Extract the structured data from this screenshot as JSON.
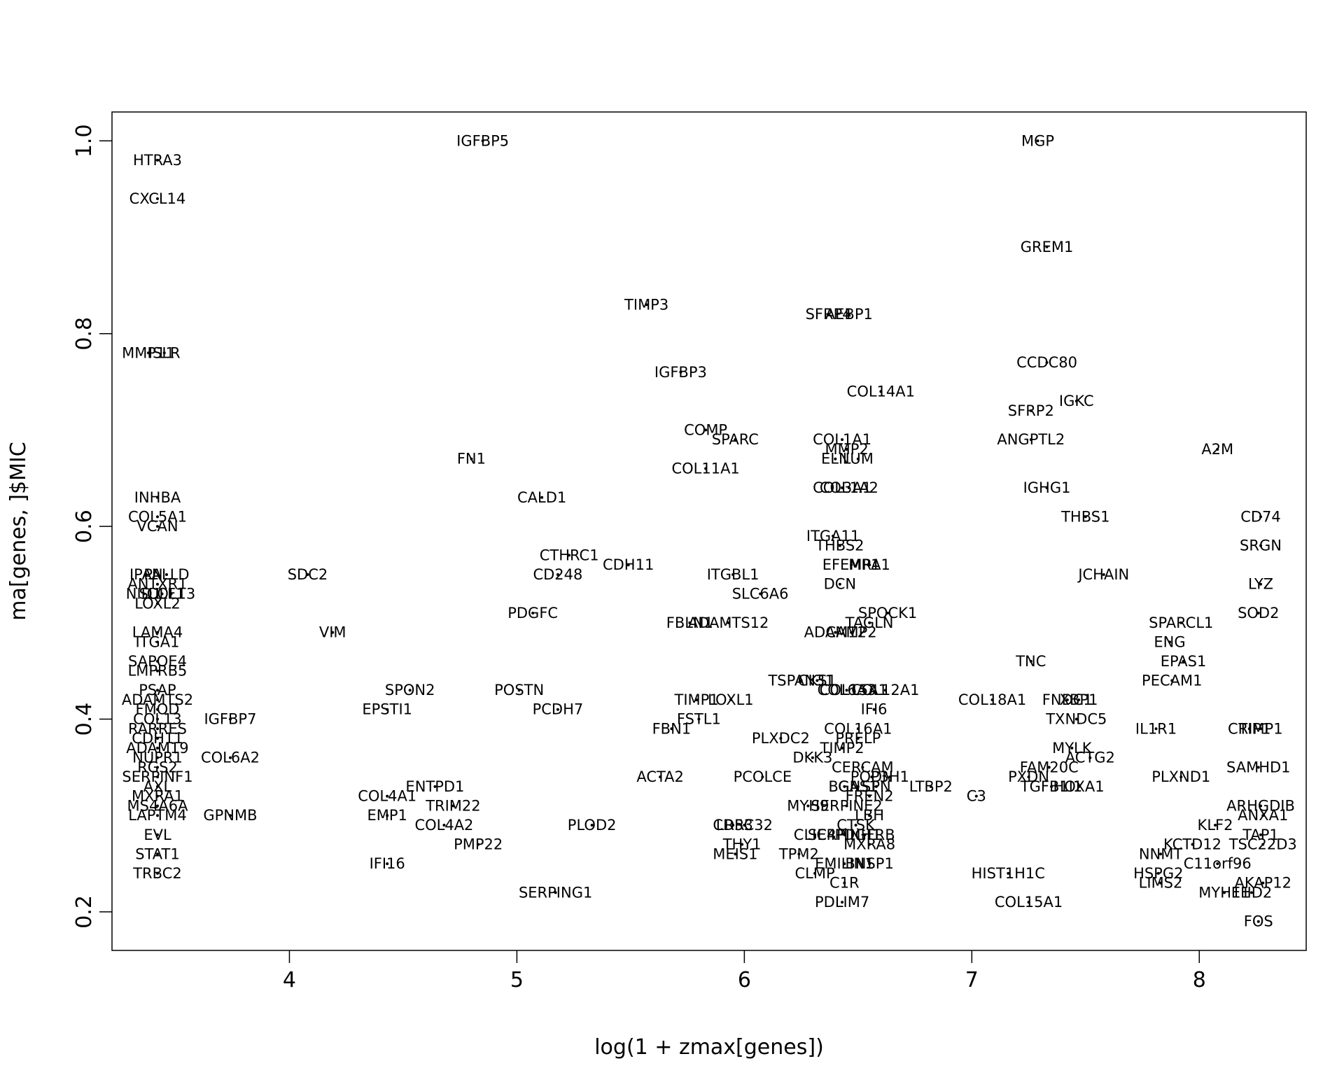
{
  "chart_data": {
    "type": "scatter",
    "xlabel": "log(1 + zmax[genes])",
    "ylabel": "ma[genes, ]$MIC",
    "xlim": [
      3.22,
      8.47
    ],
    "ylim": [
      0.16,
      1.03
    ],
    "xticks": [
      "4",
      "5",
      "6",
      "7",
      "8"
    ],
    "yticks": [
      "0.2",
      "0.4",
      "0.6",
      "0.8",
      "1.0"
    ],
    "grid": false,
    "legend": "none",
    "points": [
      {
        "label": "IGFBP5",
        "x": 4.85,
        "y": 1.0
      },
      {
        "label": "MGP",
        "x": 7.29,
        "y": 1.0
      },
      {
        "label": "HTRA3",
        "x": 3.42,
        "y": 0.98
      },
      {
        "label": "CXCL14",
        "x": 3.42,
        "y": 0.94
      },
      {
        "label": "GREM1",
        "x": 7.33,
        "y": 0.89
      },
      {
        "label": "TIMP3",
        "x": 5.57,
        "y": 0.83
      },
      {
        "label": "SFRP4",
        "x": 6.37,
        "y": 0.82
      },
      {
        "label": "AEBP1",
        "x": 6.46,
        "y": 0.82
      },
      {
        "label": "MMP11",
        "x": 3.38,
        "y": 0.78
      },
      {
        "label": "ISLR",
        "x": 3.45,
        "y": 0.78
      },
      {
        "label": "CCDC80",
        "x": 7.33,
        "y": 0.77
      },
      {
        "label": "IGFBP3",
        "x": 5.72,
        "y": 0.76
      },
      {
        "label": "COL14A1",
        "x": 6.6,
        "y": 0.74
      },
      {
        "label": "IGKC",
        "x": 7.46,
        "y": 0.73
      },
      {
        "label": "SFRP2",
        "x": 7.26,
        "y": 0.72
      },
      {
        "label": "COMP",
        "x": 5.83,
        "y": 0.7
      },
      {
        "label": "SPARC",
        "x": 5.96,
        "y": 0.69
      },
      {
        "label": "COL1A1",
        "x": 6.43,
        "y": 0.69
      },
      {
        "label": "ANGPTL2",
        "x": 7.26,
        "y": 0.69
      },
      {
        "label": "MMP2",
        "x": 6.45,
        "y": 0.68
      },
      {
        "label": "A2M",
        "x": 8.08,
        "y": 0.68
      },
      {
        "label": "FN1",
        "x": 4.8,
        "y": 0.67
      },
      {
        "label": "ELN",
        "x": 6.4,
        "y": 0.67
      },
      {
        "label": "LUM",
        "x": 6.5,
        "y": 0.67
      },
      {
        "label": "COL11A1",
        "x": 5.83,
        "y": 0.66
      },
      {
        "label": "COL3A1",
        "x": 6.43,
        "y": 0.64
      },
      {
        "label": "COL1A2",
        "x": 6.46,
        "y": 0.64
      },
      {
        "label": "IGHG1",
        "x": 7.33,
        "y": 0.64
      },
      {
        "label": "INHBA",
        "x": 3.42,
        "y": 0.63
      },
      {
        "label": "CALD1",
        "x": 5.11,
        "y": 0.63
      },
      {
        "label": "COL5A1",
        "x": 3.42,
        "y": 0.61
      },
      {
        "label": "THBS1",
        "x": 7.5,
        "y": 0.61
      },
      {
        "label": "CD74",
        "x": 8.27,
        "y": 0.61
      },
      {
        "label": "VCAN",
        "x": 3.42,
        "y": 0.6
      },
      {
        "label": "ITGA11",
        "x": 6.39,
        "y": 0.59
      },
      {
        "label": "THBS2",
        "x": 6.42,
        "y": 0.58
      },
      {
        "label": "SRGN",
        "x": 8.27,
        "y": 0.58
      },
      {
        "label": "CTHRC1",
        "x": 5.23,
        "y": 0.57
      },
      {
        "label": "CDH11",
        "x": 5.49,
        "y": 0.56
      },
      {
        "label": "EFEMP1",
        "x": 6.47,
        "y": 0.56
      },
      {
        "label": "MRA1",
        "x": 6.55,
        "y": 0.56
      },
      {
        "label": "JCHAIN",
        "x": 7.58,
        "y": 0.55
      },
      {
        "label": "SDC2",
        "x": 4.08,
        "y": 0.55
      },
      {
        "label": "CD248",
        "x": 5.18,
        "y": 0.55
      },
      {
        "label": "ITGBL1",
        "x": 5.95,
        "y": 0.55
      },
      {
        "label": "IPAN",
        "x": 3.37,
        "y": 0.55
      },
      {
        "label": "PALLD",
        "x": 3.46,
        "y": 0.55
      },
      {
        "label": "ANTXR1",
        "x": 3.42,
        "y": 0.54
      },
      {
        "label": "DCN",
        "x": 6.42,
        "y": 0.54
      },
      {
        "label": "LYZ",
        "x": 8.27,
        "y": 0.54
      },
      {
        "label": "NID1",
        "x": 3.36,
        "y": 0.53
      },
      {
        "label": "SULF1",
        "x": 3.44,
        "y": 0.53
      },
      {
        "label": "COL13",
        "x": 3.48,
        "y": 0.53
      },
      {
        "label": "SLC6A6",
        "x": 6.07,
        "y": 0.53
      },
      {
        "label": "LOXL2",
        "x": 3.42,
        "y": 0.52
      },
      {
        "label": "PDGFC",
        "x": 5.07,
        "y": 0.51
      },
      {
        "label": "SPOCK1",
        "x": 6.63,
        "y": 0.51
      },
      {
        "label": "SOD2",
        "x": 8.26,
        "y": 0.51
      },
      {
        "label": "FBLN1",
        "x": 5.76,
        "y": 0.5
      },
      {
        "label": "ADAMTS12",
        "x": 5.93,
        "y": 0.5
      },
      {
        "label": "TAGLN",
        "x": 6.55,
        "y": 0.5
      },
      {
        "label": "SPARCL1",
        "x": 7.92,
        "y": 0.5
      },
      {
        "label": "VIM",
        "x": 4.19,
        "y": 0.49
      },
      {
        "label": "LAMA4",
        "x": 3.42,
        "y": 0.49
      },
      {
        "label": "ADAM12",
        "x": 6.4,
        "y": 0.49
      },
      {
        "label": "CAMP2",
        "x": 6.47,
        "y": 0.49
      },
      {
        "label": "ITGA1",
        "x": 3.42,
        "y": 0.48
      },
      {
        "label": "ENG",
        "x": 7.87,
        "y": 0.48
      },
      {
        "label": "TNC",
        "x": 7.26,
        "y": 0.46
      },
      {
        "label": "EPAS1",
        "x": 7.93,
        "y": 0.46
      },
      {
        "label": "SAPOE4",
        "x": 3.42,
        "y": 0.46
      },
      {
        "label": "LMPRB5",
        "x": 3.42,
        "y": 0.45
      },
      {
        "label": "TSPAN31",
        "x": 6.25,
        "y": 0.44
      },
      {
        "label": "CKS1",
        "x": 6.32,
        "y": 0.44
      },
      {
        "label": "PECAM1",
        "x": 7.88,
        "y": 0.44
      },
      {
        "label": "SPON2",
        "x": 4.53,
        "y": 0.43
      },
      {
        "label": "POSTN",
        "x": 5.01,
        "y": 0.43
      },
      {
        "label": "COL6A3",
        "x": 6.45,
        "y": 0.43
      },
      {
        "label": "COL15A1",
        "x": 6.48,
        "y": 0.43
      },
      {
        "label": "COL12A1",
        "x": 6.62,
        "y": 0.43
      },
      {
        "label": "PSAP",
        "x": 3.42,
        "y": 0.43
      },
      {
        "label": "ADAMTS2",
        "x": 3.42,
        "y": 0.42
      },
      {
        "label": "TIMP1",
        "x": 5.79,
        "y": 0.42
      },
      {
        "label": "LOXL1",
        "x": 5.94,
        "y": 0.42
      },
      {
        "label": "COL18A1",
        "x": 7.09,
        "y": 0.42
      },
      {
        "label": "FNDC1",
        "x": 7.42,
        "y": 0.42
      },
      {
        "label": "XBP1",
        "x": 7.47,
        "y": 0.42
      },
      {
        "label": "EPSTI1",
        "x": 4.43,
        "y": 0.41
      },
      {
        "label": "PCDH7",
        "x": 5.18,
        "y": 0.41
      },
      {
        "label": "IFI6",
        "x": 6.57,
        "y": 0.41
      },
      {
        "label": "FMOD",
        "x": 3.42,
        "y": 0.41
      },
      {
        "label": "IGFBP7",
        "x": 3.74,
        "y": 0.4
      },
      {
        "label": "COL13",
        "x": 3.42,
        "y": 0.4
      },
      {
        "label": "FSTL1",
        "x": 5.8,
        "y": 0.4
      },
      {
        "label": "TXNDC5",
        "x": 7.46,
        "y": 0.4
      },
      {
        "label": "FBN1",
        "x": 5.68,
        "y": 0.39
      },
      {
        "label": "COL16A1",
        "x": 6.5,
        "y": 0.39
      },
      {
        "label": "IL1R1",
        "x": 7.81,
        "y": 0.39
      },
      {
        "label": "CRIP1",
        "x": 8.22,
        "y": 0.39
      },
      {
        "label": "TIMP1",
        "x": 8.27,
        "y": 0.39
      },
      {
        "label": "RARRES",
        "x": 3.42,
        "y": 0.39
      },
      {
        "label": "CDH11",
        "x": 3.42,
        "y": 0.38
      },
      {
        "label": "PLXDC2",
        "x": 6.16,
        "y": 0.38
      },
      {
        "label": "PRELP",
        "x": 6.5,
        "y": 0.38
      },
      {
        "label": "ADAM19",
        "x": 3.42,
        "y": 0.37
      },
      {
        "label": "TIMP2",
        "x": 6.43,
        "y": 0.37
      },
      {
        "label": "MYLK",
        "x": 7.44,
        "y": 0.37
      },
      {
        "label": "COL6A2",
        "x": 3.74,
        "y": 0.36
      },
      {
        "label": "NUPR1",
        "x": 3.42,
        "y": 0.36
      },
      {
        "label": "DKK3",
        "x": 6.3,
        "y": 0.36
      },
      {
        "label": "ACTG2",
        "x": 7.52,
        "y": 0.36
      },
      {
        "label": "RGS2",
        "x": 3.42,
        "y": 0.35
      },
      {
        "label": "CERCAM",
        "x": 6.52,
        "y": 0.35
      },
      {
        "label": "FAM20C",
        "x": 7.34,
        "y": 0.35
      },
      {
        "label": "SAMHD1",
        "x": 8.26,
        "y": 0.35
      },
      {
        "label": "ACTA2",
        "x": 5.63,
        "y": 0.34
      },
      {
        "label": "PCOLCE",
        "x": 6.08,
        "y": 0.34
      },
      {
        "label": "PODN",
        "x": 6.56,
        "y": 0.34
      },
      {
        "label": "P3H1",
        "x": 6.64,
        "y": 0.34
      },
      {
        "label": "PXDN",
        "x": 7.25,
        "y": 0.34
      },
      {
        "label": "PLXND1",
        "x": 7.92,
        "y": 0.34
      },
      {
        "label": "SERPINF1",
        "x": 3.42,
        "y": 0.34
      },
      {
        "label": "ENTPD1",
        "x": 4.64,
        "y": 0.33
      },
      {
        "label": "BGN",
        "x": 6.44,
        "y": 0.33
      },
      {
        "label": "GAS1",
        "x": 6.5,
        "y": 0.33
      },
      {
        "label": "SPN",
        "x": 6.58,
        "y": 0.33
      },
      {
        "label": "LTBP2",
        "x": 6.82,
        "y": 0.33
      },
      {
        "label": "TGFB1I1",
        "x": 7.35,
        "y": 0.33
      },
      {
        "label": "HOXA1",
        "x": 7.47,
        "y": 0.33
      },
      {
        "label": "AXL",
        "x": 3.42,
        "y": 0.33
      },
      {
        "label": "COL4A1",
        "x": 4.43,
        "y": 0.32
      },
      {
        "label": "C3",
        "x": 7.02,
        "y": 0.32
      },
      {
        "label": "FREN2",
        "x": 6.55,
        "y": 0.32
      },
      {
        "label": "MXRA1",
        "x": 3.42,
        "y": 0.32
      },
      {
        "label": "TRIM22",
        "x": 4.72,
        "y": 0.31
      },
      {
        "label": "MYH9",
        "x": 6.28,
        "y": 0.31
      },
      {
        "label": "SERPINE2",
        "x": 6.45,
        "y": 0.31
      },
      {
        "label": "ARHGDIB",
        "x": 8.27,
        "y": 0.31
      },
      {
        "label": "MS4A6A",
        "x": 3.42,
        "y": 0.31
      },
      {
        "label": "EMP1",
        "x": 4.43,
        "y": 0.3
      },
      {
        "label": "GPNMB",
        "x": 3.74,
        "y": 0.3
      },
      {
        "label": "LBH",
        "x": 6.55,
        "y": 0.3
      },
      {
        "label": "ANXA1",
        "x": 8.28,
        "y": 0.3
      },
      {
        "label": "LAPTM4",
        "x": 3.42,
        "y": 0.3
      },
      {
        "label": "COL4A2",
        "x": 4.68,
        "y": 0.29
      },
      {
        "label": "PLOD2",
        "x": 5.33,
        "y": 0.29
      },
      {
        "label": "LRRC32",
        "x": 6.0,
        "y": 0.29
      },
      {
        "label": "CD53",
        "x": 5.95,
        "y": 0.29
      },
      {
        "label": "CTSK",
        "x": 6.49,
        "y": 0.29
      },
      {
        "label": "KLF2",
        "x": 8.07,
        "y": 0.29
      },
      {
        "label": "EVL",
        "x": 3.42,
        "y": 0.28
      },
      {
        "label": "CLIC4",
        "x": 6.31,
        "y": 0.28
      },
      {
        "label": "SERPINH1",
        "x": 6.44,
        "y": 0.28
      },
      {
        "label": "PDGFRB",
        "x": 6.53,
        "y": 0.28
      },
      {
        "label": "TAP1",
        "x": 8.27,
        "y": 0.28
      },
      {
        "label": "PMP22",
        "x": 4.83,
        "y": 0.27
      },
      {
        "label": "THY1",
        "x": 5.99,
        "y": 0.27
      },
      {
        "label": "MXRA8",
        "x": 6.55,
        "y": 0.27
      },
      {
        "label": "KCTD12",
        "x": 7.97,
        "y": 0.27
      },
      {
        "label": "TSC22D3",
        "x": 8.28,
        "y": 0.27
      },
      {
        "label": "STAT1",
        "x": 3.42,
        "y": 0.26
      },
      {
        "label": "MEIS1",
        "x": 5.96,
        "y": 0.26
      },
      {
        "label": "TPM2",
        "x": 6.24,
        "y": 0.26
      },
      {
        "label": "NNMT",
        "x": 7.83,
        "y": 0.26
      },
      {
        "label": "IFI16",
        "x": 4.43,
        "y": 0.25
      },
      {
        "label": "EMILIN1",
        "x": 6.44,
        "y": 0.25
      },
      {
        "label": "BNSP1",
        "x": 6.55,
        "y": 0.25
      },
      {
        "label": "C11orf96",
        "x": 8.08,
        "y": 0.25
      },
      {
        "label": "TRBC2",
        "x": 3.42,
        "y": 0.24
      },
      {
        "label": "CLMP",
        "x": 6.31,
        "y": 0.24
      },
      {
        "label": "HIST1H1C",
        "x": 7.16,
        "y": 0.24
      },
      {
        "label": "HSPG2",
        "x": 7.82,
        "y": 0.24
      },
      {
        "label": "C1R",
        "x": 6.44,
        "y": 0.23
      },
      {
        "label": "LIMS2",
        "x": 7.83,
        "y": 0.23
      },
      {
        "label": "AKAP12",
        "x": 8.28,
        "y": 0.23
      },
      {
        "label": "SERPING1",
        "x": 5.17,
        "y": 0.22
      },
      {
        "label": "MYH11",
        "x": 8.11,
        "y": 0.22
      },
      {
        "label": "EHD2",
        "x": 8.23,
        "y": 0.22
      },
      {
        "label": "PDLIM7",
        "x": 6.43,
        "y": 0.21
      },
      {
        "label": "COL15A1",
        "x": 7.25,
        "y": 0.21
      },
      {
        "label": "FOS",
        "x": 8.26,
        "y": 0.19
      }
    ]
  }
}
